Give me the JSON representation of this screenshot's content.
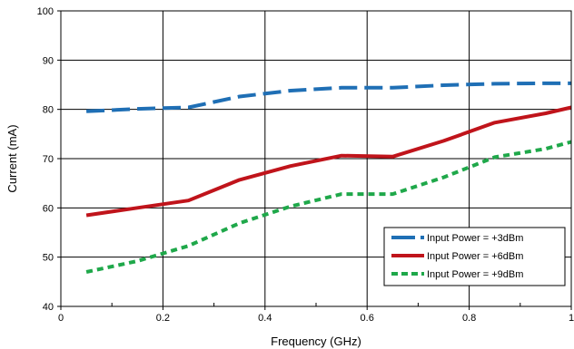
{
  "chart_data": {
    "type": "line",
    "title": "",
    "xlabel": "Frequency (GHz)",
    "ylabel": "Current (mA)",
    "xlim": [
      0,
      1
    ],
    "ylim": [
      40,
      100
    ],
    "xticks": [
      "0",
      "0.2",
      "0.4",
      "0.6",
      "0.8",
      "1"
    ],
    "yticks": [
      "40",
      "50",
      "60",
      "70",
      "80",
      "90",
      "100"
    ],
    "grid": true,
    "legend_position": "bottom-right",
    "series": [
      {
        "name": "Input Power = +3dBm",
        "color": "#1f6fb5",
        "style": "long-dash",
        "x": [
          0.05,
          0.15,
          0.25,
          0.35,
          0.45,
          0.55,
          0.65,
          0.75,
          0.85,
          0.95,
          1.0
        ],
        "y": [
          79.6,
          80.1,
          80.4,
          82.6,
          83.8,
          84.4,
          84.4,
          84.9,
          85.2,
          85.3,
          85.3
        ]
      },
      {
        "name": "Input Power = +6dBm",
        "color": "#c0141b",
        "style": "solid",
        "x": [
          0.05,
          0.15,
          0.25,
          0.35,
          0.45,
          0.55,
          0.65,
          0.75,
          0.85,
          0.95,
          1.0
        ],
        "y": [
          58.5,
          60.0,
          61.5,
          65.7,
          68.5,
          70.6,
          70.4,
          73.6,
          77.3,
          79.2,
          80.4
        ]
      },
      {
        "name": "Input Power = +9dBm",
        "color": "#1fa84a",
        "style": "short-dash",
        "x": [
          0.05,
          0.15,
          0.25,
          0.35,
          0.45,
          0.55,
          0.65,
          0.75,
          0.85,
          0.95,
          1.0
        ],
        "y": [
          47.0,
          49.2,
          52.3,
          56.9,
          60.3,
          62.8,
          62.8,
          66.2,
          70.3,
          72.0,
          73.4
        ]
      }
    ]
  }
}
